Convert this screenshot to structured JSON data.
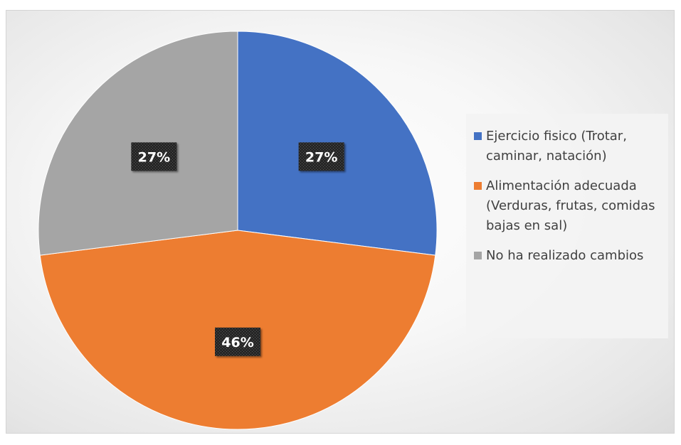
{
  "chart_data": {
    "type": "pie",
    "title": "",
    "start_angle_deg": 0,
    "direction": "clockwise",
    "legend_position": "right",
    "slices": [
      {
        "label": "Ejercicio fisico (Trotar, caminar, natación)",
        "value": 27,
        "value_label": "27%",
        "color": "#4472C4"
      },
      {
        "label": "Alimentación adecuada (Verduras, frutas, comidas bajas en sal)",
        "value": 46,
        "value_label": "46%",
        "color": "#ED7D31"
      },
      {
        "label": "No ha realizado cambios",
        "value": 27,
        "value_label": "27%",
        "color": "#A5A5A5"
      }
    ]
  },
  "legend": {
    "items": [
      {
        "text": "Ejercicio fisico (Trotar,\ncaminar, natación)",
        "color": "#4472C4"
      },
      {
        "text": "Alimentación adecuada\n(Verduras, frutas, comidas\nbajas en sal)",
        "color": "#ED7D31"
      },
      {
        "text": "No ha realizado cambios",
        "color": "#A5A5A5"
      }
    ]
  }
}
